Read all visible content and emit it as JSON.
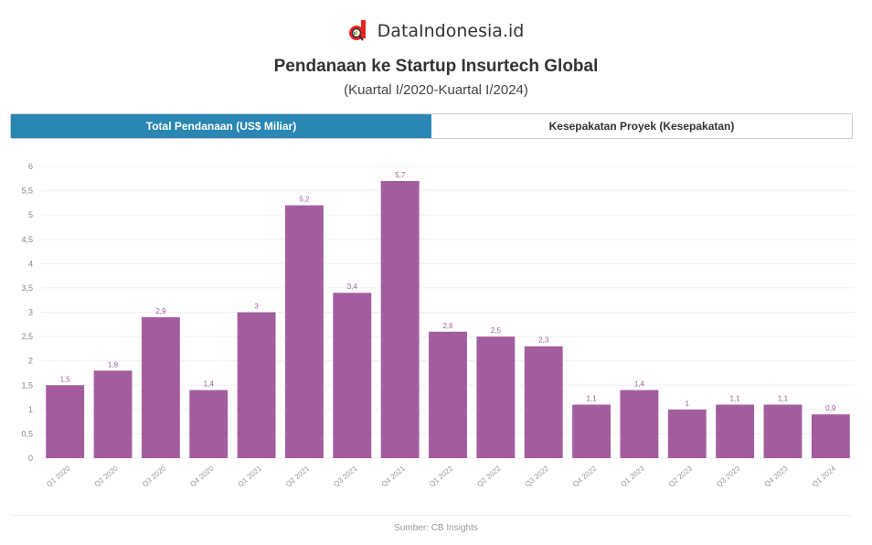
{
  "brand": {
    "name": "DataIndonesia.id",
    "logo_icon": "magnifier-d-logo",
    "logo_color": "#e52421"
  },
  "header": {
    "title": "Pendanaan ke Startup Insurtech Global",
    "subtitle": "(Kuartal I/2020-Kuartal I/2024)"
  },
  "tabs": [
    {
      "label": "Total Pendanaan (US$ Miliar)",
      "active": true
    },
    {
      "label": "Kesepakatan Proyek (Kesepakatan)",
      "active": false
    }
  ],
  "colors": {
    "bar": "#a25d9f",
    "tab_active": "#2a86b2",
    "grid": "#f0f0f0"
  },
  "chart_data": {
    "type": "bar",
    "title": "Pendanaan ke Startup Insurtech Global",
    "subtitle": "(Kuartal I/2020-Kuartal I/2024)",
    "xlabel": "",
    "ylabel": "Total Pendanaan (US$ Miliar)",
    "categories": [
      "Q1 2020",
      "Q2 2020",
      "Q3 2020",
      "Q4 2020",
      "Q1 2021",
      "Q2 2021",
      "Q3 2021",
      "Q4 2021",
      "Q1 2022",
      "Q2 2022",
      "Q3 2022",
      "Q4 2022",
      "Q1 2023",
      "Q2 2023",
      "Q3 2023",
      "Q4 2023",
      "Q1 2024"
    ],
    "values": [
      1.5,
      1.8,
      2.9,
      1.4,
      3,
      5.2,
      3.4,
      5.7,
      2.6,
      2.5,
      2.3,
      1.1,
      1.4,
      1,
      1.1,
      1.1,
      0.9
    ],
    "value_labels": [
      "1,5",
      "1,8",
      "2,9",
      "1,4",
      "3",
      "5,2",
      "3,4",
      "5,7",
      "2,6",
      "2,5",
      "2,3",
      "1,1",
      "1,4",
      "1",
      "1,1",
      "1,1",
      "0,9"
    ],
    "ylim": [
      0,
      6
    ],
    "yticks": [
      "0",
      "0,5",
      "1",
      "1,5",
      "2",
      "2,5",
      "3",
      "3,5",
      "4",
      "4,5",
      "5",
      "5,5",
      "6"
    ],
    "grid": true,
    "legend": "none"
  },
  "footer": {
    "source": "Sumber: CB Insights"
  }
}
